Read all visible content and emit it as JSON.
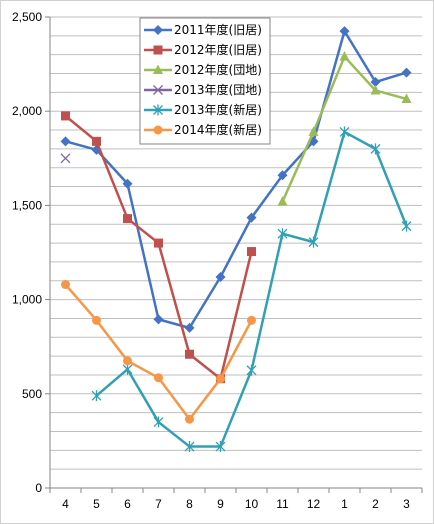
{
  "chart_data": {
    "type": "line",
    "title": "",
    "xlabel": "",
    "ylabel": "",
    "categories": [
      "4",
      "5",
      "6",
      "7",
      "8",
      "9",
      "10",
      "11",
      "12",
      "1",
      "2",
      "3"
    ],
    "y_ticks": [
      "0",
      "500",
      "1,000",
      "1,500",
      "2,000",
      "2,500"
    ],
    "ylim": [
      0,
      2500
    ],
    "grid": true,
    "legend_position": "top-center",
    "series": [
      {
        "name": "2011年度(旧居)",
        "color": "#4472c4",
        "marker": "diamond",
        "values": [
          1840,
          1795,
          1615,
          895,
          850,
          1120,
          1435,
          1660,
          1840,
          2425,
          2155,
          2205
        ]
      },
      {
        "name": "2012年度(旧居)",
        "color": "#c0504d",
        "marker": "square",
        "values": [
          1975,
          1840,
          1430,
          1300,
          710,
          580,
          1255,
          null,
          null,
          null,
          null,
          null
        ]
      },
      {
        "name": "2012年度(団地)",
        "color": "#9bbb59",
        "marker": "triangle",
        "values": [
          null,
          null,
          null,
          null,
          null,
          null,
          null,
          1520,
          1890,
          2290,
          2110,
          2065
        ]
      },
      {
        "name": "2013年度(団地)",
        "color": "#8064a2",
        "marker": "x",
        "values": [
          1750,
          null,
          null,
          null,
          null,
          null,
          null,
          null,
          null,
          null,
          null,
          null
        ]
      },
      {
        "name": "2013年度(新居)",
        "color": "#31a0b6",
        "marker": "star",
        "values": [
          null,
          490,
          630,
          350,
          220,
          220,
          625,
          1350,
          1305,
          1890,
          1800,
          1390
        ]
      },
      {
        "name": "2014年度(新居)",
        "color": "#f79646",
        "marker": "circle",
        "values": [
          1080,
          890,
          675,
          585,
          365,
          580,
          890,
          null,
          null,
          null,
          null,
          null
        ]
      }
    ]
  }
}
